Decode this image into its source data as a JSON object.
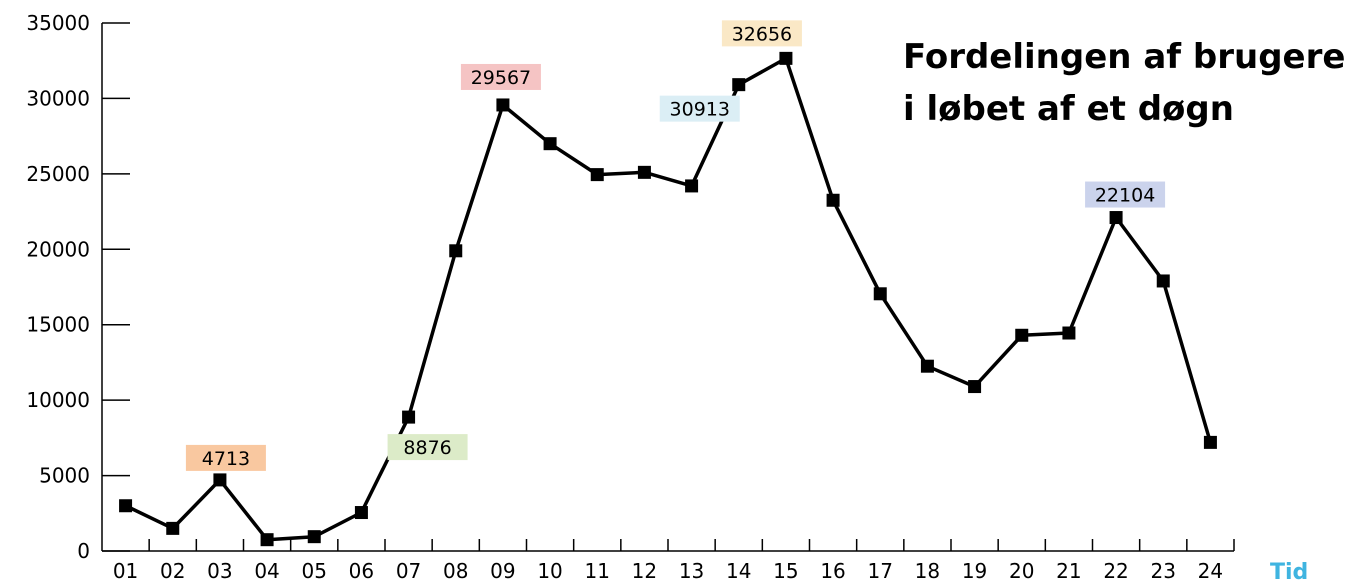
{
  "chart_data": {
    "type": "line",
    "title_lines": [
      "Fordelingen af brugere",
      "i løbet af et døgn"
    ],
    "xlabel": "Tid",
    "ylabel": "",
    "categories": [
      "01",
      "02",
      "03",
      "04",
      "05",
      "06",
      "07",
      "08",
      "09",
      "10",
      "11",
      "12",
      "13",
      "14",
      "15",
      "16",
      "17",
      "18",
      "19",
      "20",
      "21",
      "22",
      "23",
      "24"
    ],
    "x": [
      0.5,
      1.5,
      2.5,
      3.5,
      4.5,
      5.5,
      6.5,
      7.5,
      8.5,
      9.5,
      10.5,
      11.5,
      12.5,
      13.5,
      14.5,
      15.5,
      16.5,
      17.5,
      18.5,
      19.5,
      20.5,
      21.5,
      22.5,
      23.5
    ],
    "values": [
      3000,
      1500,
      4713,
      750,
      950,
      2550,
      8876,
      19900,
      29567,
      27000,
      24950,
      25100,
      24200,
      30913,
      32656,
      23250,
      17050,
      12250,
      10900,
      14300,
      14450,
      22104,
      17900,
      7200
    ],
    "yticks": [
      0,
      5000,
      10000,
      15000,
      20000,
      25000,
      30000,
      35000
    ],
    "ylim": [
      0,
      35000
    ],
    "xlim": [
      0,
      24
    ],
    "grid": false,
    "legend": "none",
    "annotations": [
      {
        "text": "4713",
        "point_index": 2,
        "color": "#f9c8a0"
      },
      {
        "text": "8876",
        "point_index": 6,
        "color": "#dcebc8"
      },
      {
        "text": "29567",
        "point_index": 8,
        "color": "#f5c4c4"
      },
      {
        "text": "30913",
        "point_index": 13,
        "color": "#dbeef5"
      },
      {
        "text": "32656",
        "point_index": 14,
        "color": "#fae8c6"
      },
      {
        "text": "22104",
        "point_index": 21,
        "color": "#cbd3ec"
      }
    ],
    "line_color": "#000000",
    "marker": "square",
    "xlabel_color": "#3fb4e0"
  }
}
